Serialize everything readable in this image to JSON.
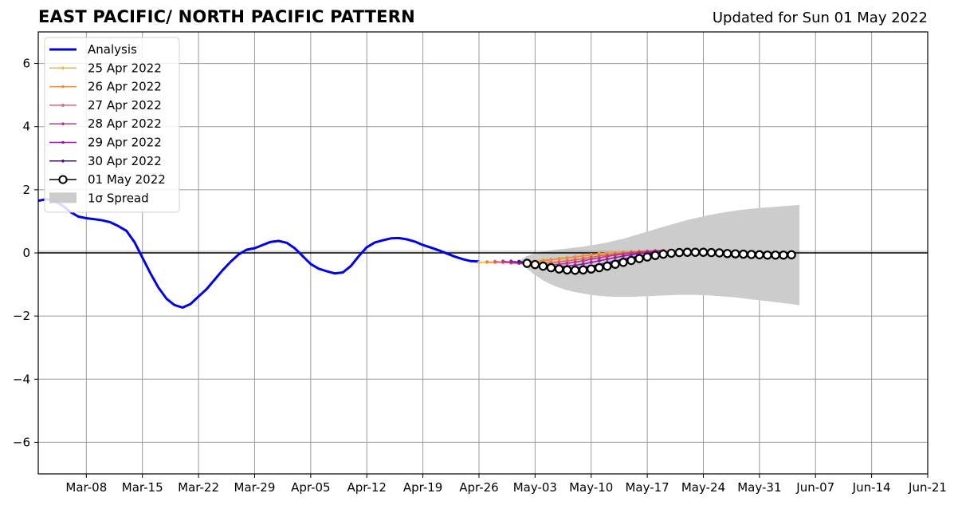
{
  "header": {
    "title": "EAST PACIFIC/ NORTH PACIFIC PATTERN",
    "subtitle": "Updated for Sun 01 May 2022"
  },
  "chart_data": {
    "type": "line",
    "title": "EAST PACIFIC/ NORTH PACIFIC PATTERN",
    "subtitle": "Updated for Sun 01 May 2022",
    "xlabel": "",
    "ylabel": "",
    "xlim": [
      "2022-03-02",
      "2022-06-21"
    ],
    "ylim": [
      -7,
      7
    ],
    "x_ticks": [
      "Mar-08",
      "Mar-15",
      "Mar-22",
      "Mar-29",
      "Apr-05",
      "Apr-12",
      "Apr-19",
      "Apr-26",
      "May-03",
      "May-10",
      "May-17",
      "May-24",
      "May-31",
      "Jun-07",
      "Jun-14",
      "Jun-21"
    ],
    "x_tick_dates": [
      "2022-03-08",
      "2022-03-15",
      "2022-03-22",
      "2022-03-29",
      "2022-04-05",
      "2022-04-12",
      "2022-04-19",
      "2022-04-26",
      "2022-05-03",
      "2022-05-10",
      "2022-05-17",
      "2022-05-24",
      "2022-05-31",
      "2022-06-07",
      "2022-06-14",
      "2022-06-21"
    ],
    "y_ticks": [
      6,
      4,
      2,
      0,
      -2,
      -4,
      -6
    ],
    "y_tick_labels": [
      "6",
      "4",
      "2",
      "0",
      "−2",
      "−4",
      "−6"
    ],
    "grid": true,
    "legend_placement": "top-left",
    "analysis": {
      "name": "Analysis",
      "color": "#0000ee",
      "x_start": "2022-03-02",
      "values": [
        1.65,
        1.7,
        1.65,
        1.5,
        1.3,
        1.15,
        1.1,
        1.07,
        1.03,
        0.97,
        0.85,
        0.7,
        0.35,
        -0.15,
        -0.65,
        -1.1,
        -1.45,
        -1.65,
        -1.73,
        -1.62,
        -1.38,
        -1.15,
        -0.85,
        -0.55,
        -0.28,
        -0.05,
        0.1,
        0.15,
        0.25,
        0.35,
        0.38,
        0.32,
        0.15,
        -0.1,
        -0.35,
        -0.5,
        -0.58,
        -0.65,
        -0.62,
        -0.42,
        -0.1,
        0.18,
        0.33,
        0.4,
        0.46,
        0.47,
        0.43,
        0.36,
        0.25,
        0.17,
        0.08,
        -0.02,
        -0.12,
        -0.2,
        -0.26,
        -0.27
      ]
    },
    "forecasts": [
      {
        "name": "25 Apr 2022",
        "color": "#f5b53a",
        "x_start": "2022-04-26",
        "values": [
          -0.3,
          -0.3,
          -0.3,
          -0.28,
          -0.28,
          -0.27,
          -0.26,
          -0.25,
          -0.22,
          -0.2,
          -0.17,
          -0.14,
          -0.11,
          -0.08,
          -0.05,
          -0.02,
          0.0,
          0.02,
          0.03,
          0.05,
          0.06,
          0.07,
          0.07,
          0.08
        ]
      },
      {
        "name": "26 Apr 2022",
        "color": "#f08a45",
        "x_start": "2022-04-27",
        "values": [
          -0.28,
          -0.3,
          -0.3,
          -0.3,
          -0.3,
          -0.28,
          -0.27,
          -0.25,
          -0.22,
          -0.19,
          -0.16,
          -0.13,
          -0.1,
          -0.07,
          -0.04,
          -0.02,
          0.0,
          0.02,
          0.04,
          0.05,
          0.06,
          0.07,
          0.08
        ]
      },
      {
        "name": "27 Apr 2022",
        "color": "#df5f6f",
        "x_start": "2022-04-28",
        "values": [
          -0.27,
          -0.3,
          -0.32,
          -0.33,
          -0.34,
          -0.34,
          -0.33,
          -0.31,
          -0.28,
          -0.25,
          -0.22,
          -0.18,
          -0.14,
          -0.1,
          -0.07,
          -0.04,
          -0.01,
          0.02,
          0.04,
          0.05,
          0.07,
          0.08
        ]
      },
      {
        "name": "28 Apr 2022",
        "color": "#b8378e",
        "x_start": "2022-04-29",
        "values": [
          -0.26,
          -0.3,
          -0.33,
          -0.36,
          -0.38,
          -0.39,
          -0.38,
          -0.36,
          -0.33,
          -0.29,
          -0.25,
          -0.2,
          -0.16,
          -0.11,
          -0.07,
          -0.04,
          -0.01,
          0.02,
          0.04,
          0.06,
          0.07
        ]
      },
      {
        "name": "29 Apr 2022",
        "color": "#8a1fa0",
        "x_start": "2022-04-30",
        "values": [
          -0.26,
          -0.3,
          -0.34,
          -0.38,
          -0.42,
          -0.44,
          -0.44,
          -0.42,
          -0.39,
          -0.35,
          -0.3,
          -0.25,
          -0.2,
          -0.15,
          -0.1,
          -0.06,
          -0.02,
          0.01,
          0.04,
          0.06
        ]
      },
      {
        "name": "30 Apr 2022",
        "color": "#4b0d8a",
        "x_start": "2022-05-01",
        "values": [
          -0.27,
          -0.31,
          -0.36,
          -0.41,
          -0.46,
          -0.49,
          -0.5,
          -0.49,
          -0.46,
          -0.42,
          -0.37,
          -0.31,
          -0.26,
          -0.2,
          -0.15,
          -0.1,
          -0.06,
          -0.02,
          0.01
        ]
      },
      {
        "name": "01 May 2022",
        "color": "#000000",
        "marker": "open-circle",
        "x_start": "2022-05-02",
        "values": [
          -0.33,
          -0.37,
          -0.42,
          -0.47,
          -0.51,
          -0.54,
          -0.55,
          -0.54,
          -0.51,
          -0.47,
          -0.42,
          -0.36,
          -0.3,
          -0.24,
          -0.18,
          -0.13,
          -0.08,
          -0.04,
          -0.01,
          0.01,
          0.02,
          0.02,
          0.02,
          0.01,
          0.0,
          -0.02,
          -0.03,
          -0.04,
          -0.05,
          -0.06,
          -0.07,
          -0.07,
          -0.07,
          -0.06
        ]
      }
    ],
    "spread": {
      "name": "1σ Spread",
      "color": "#cccccc",
      "x_start": "2022-05-01",
      "upper": [
        -0.25,
        -0.1,
        0.0,
        0.04,
        0.08,
        0.11,
        0.14,
        0.17,
        0.2,
        0.24,
        0.28,
        0.33,
        0.39,
        0.45,
        0.52,
        0.6,
        0.67,
        0.75,
        0.83,
        0.9,
        0.97,
        1.04,
        1.1,
        1.16,
        1.21,
        1.26,
        1.3,
        1.34,
        1.37,
        1.4,
        1.42,
        1.44,
        1.46,
        1.48,
        1.5,
        1.52
      ],
      "lower": [
        -0.28,
        -0.5,
        -0.7,
        -0.87,
        -1.0,
        -1.1,
        -1.18,
        -1.24,
        -1.29,
        -1.33,
        -1.36,
        -1.38,
        -1.39,
        -1.39,
        -1.39,
        -1.38,
        -1.37,
        -1.36,
        -1.35,
        -1.34,
        -1.33,
        -1.33,
        -1.33,
        -1.34,
        -1.35,
        -1.37,
        -1.39,
        -1.41,
        -1.44,
        -1.47,
        -1.5,
        -1.53,
        -1.56,
        -1.59,
        -1.62,
        -1.66
      ]
    },
    "legend": [
      "Analysis",
      "25 Apr 2022",
      "26 Apr 2022",
      "27 Apr 2022",
      "28 Apr 2022",
      "29 Apr 2022",
      "30 Apr 2022",
      "01 May 2022",
      "1σ Spread"
    ]
  }
}
